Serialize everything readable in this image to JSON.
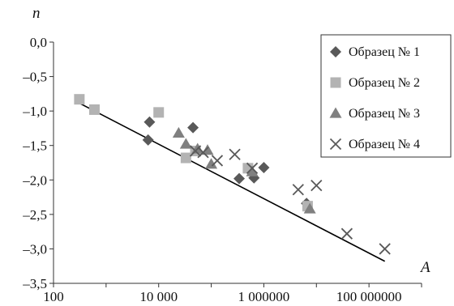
{
  "chart_data": {
    "type": "scatter",
    "xscale": "log",
    "xlabel": "A",
    "ylabel": "n",
    "xlim": [
      100,
      1000000000
    ],
    "ylim": [
      -3.5,
      0.0
    ],
    "x_ticks": [
      100,
      10000,
      1000000,
      100000000
    ],
    "x_tick_labels": [
      "100",
      "10 000",
      "1 000000",
      "100 000000"
    ],
    "y_ticks": [
      0.0,
      -0.5,
      -1.0,
      -1.5,
      -2.0,
      -2.5,
      -3.0,
      -3.5
    ],
    "y_tick_labels": [
      "0,0",
      "–0,5",
      "–1,0",
      "–1,5",
      "–2,0",
      "–2,5",
      "–3,0",
      "–3,5"
    ],
    "grid": false,
    "legend_position": "top-right",
    "trendline": {
      "x": [
        300,
        200000000
      ],
      "y": [
        -0.88,
        -3.18
      ]
    },
    "series": [
      {
        "name": "Образец № 1",
        "marker": "diamond",
        "color": "#595959",
        "x": [
          6300,
          6700,
          45000,
          340000,
          650000,
          1000000,
          6500000
        ],
        "y": [
          -1.42,
          -1.16,
          -1.24,
          -1.98,
          -1.97,
          -1.82,
          -2.34
        ]
      },
      {
        "name": "Образец № 2",
        "marker": "square",
        "color": "#b3b3b3",
        "x": [
          310,
          600,
          10000,
          33000,
          50000,
          500000,
          6800000
        ],
        "y": [
          -0.83,
          -0.98,
          -1.02,
          -1.68,
          -1.58,
          -1.83,
          -2.38
        ]
      },
      {
        "name": "Образец № 3",
        "marker": "triangle",
        "color": "#808080",
        "x": [
          24000,
          33000,
          55000,
          85000,
          100000,
          600000,
          7500000
        ],
        "y": [
          -1.32,
          -1.48,
          -1.55,
          -1.57,
          -1.77,
          -1.88,
          -2.42
        ]
      },
      {
        "name": "Образец № 4",
        "marker": "cross",
        "color": "#595959",
        "x": [
          50000,
          70000,
          130000,
          280000,
          600000,
          4500000,
          10000000,
          38000000,
          200000000
        ],
        "y": [
          -1.58,
          -1.6,
          -1.72,
          -1.63,
          -1.83,
          -2.14,
          -2.08,
          -2.78,
          -3.0
        ]
      }
    ]
  }
}
